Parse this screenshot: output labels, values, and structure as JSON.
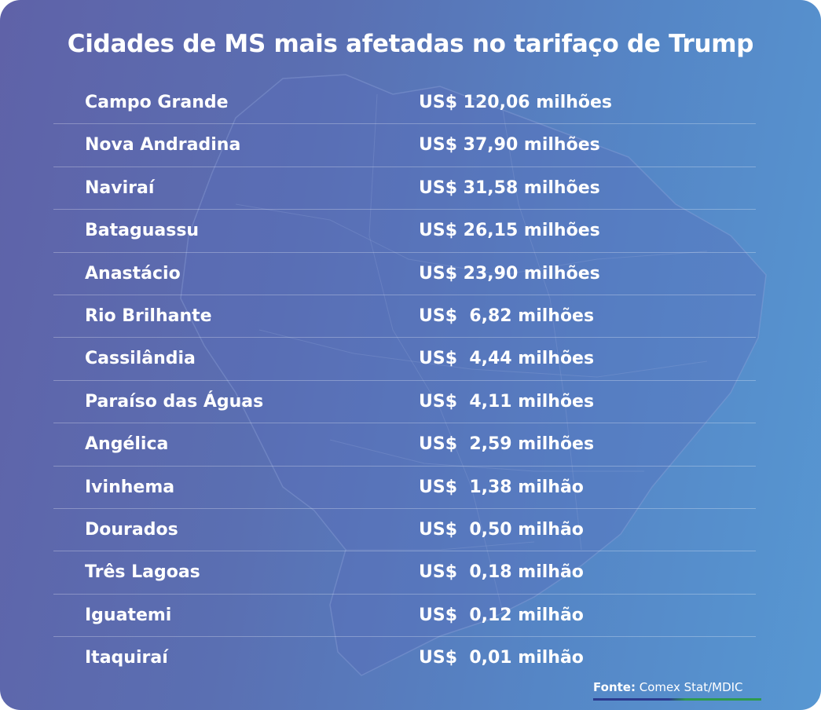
{
  "title": "Cidades de MS mais afetadas no tarifaço de Trump",
  "rows": [
    {
      "city": "Campo Grande",
      "value": "US$ 120,06 milhões"
    },
    {
      "city": "Nova Andradina",
      "value": "US$ 37,90 milhões"
    },
    {
      "city": "Naviraí",
      "value": "US$ 31,58 milhões"
    },
    {
      "city": "Bataguassu",
      "value": "US$ 26,15 milhões"
    },
    {
      "city": "Anastácio",
      "value": "US$ 23,90 milhões"
    },
    {
      "city": "Rio Brilhante",
      "value": "US$  6,82 milhões"
    },
    {
      "city": "Cassilândia",
      "value": "US$  4,44 milhões"
    },
    {
      "city": "Paraíso das Águas",
      "value": "US$  4,11 milhões"
    },
    {
      "city": "Angélica",
      "value": "US$  2,59 milhões"
    },
    {
      "city": "Ivinhema",
      "value": "US$  1,38 milhão"
    },
    {
      "city": "Dourados",
      "value": "US$  0,50 milhão"
    },
    {
      "city": "Três Lagoas",
      "value": "US$  0,18 milhão"
    },
    {
      "city": "Iguatemi",
      "value": "US$  0,12 milhão"
    },
    {
      "city": "Itaquiraí",
      "value": "US$  0,01 milhão"
    }
  ],
  "source": {
    "label": "Fonte:",
    "text": " Comex Stat/MDIC"
  },
  "colors": {
    "gradient_start": "#5f62a8",
    "gradient_end": "#5797d2",
    "text": "#ffffff",
    "source_line_blue": "#2b3a8e",
    "source_line_green": "#2e9a4e"
  }
}
